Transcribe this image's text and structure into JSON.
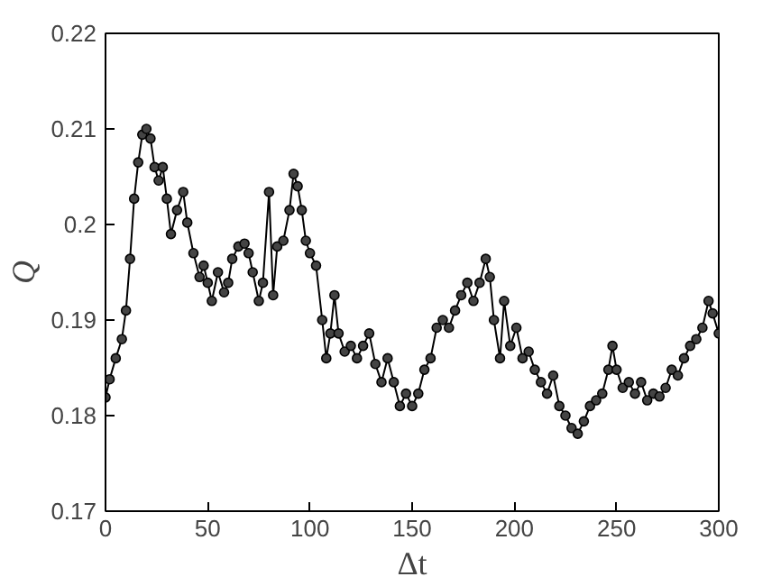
{
  "chart_data": {
    "type": "line",
    "xlabel": "Δt",
    "ylabel": "Q",
    "xlim": [
      0,
      300
    ],
    "ylim": [
      0.17,
      0.22
    ],
    "xticks": [
      0,
      50,
      100,
      150,
      200,
      250,
      300
    ],
    "yticks": [
      0.17,
      0.18,
      0.19,
      0.2,
      0.21,
      0.22
    ],
    "marker": "circle",
    "line_style": "solid",
    "series": [
      {
        "color": "#444444",
        "x": [
          0,
          2,
          5,
          8,
          10,
          12,
          14,
          16,
          18,
          20,
          22,
          24,
          26,
          28,
          30,
          32,
          35,
          38,
          40,
          43,
          46,
          48,
          50,
          52,
          55,
          58,
          60,
          62,
          65,
          68,
          70,
          72,
          75,
          77,
          80,
          82,
          84,
          87,
          90,
          92,
          94,
          96,
          98,
          100,
          103,
          106,
          108,
          110,
          112,
          114,
          117,
          120,
          123,
          126,
          129,
          132,
          135,
          138,
          141,
          144,
          147,
          150,
          153,
          156,
          159,
          162,
          165,
          168,
          171,
          174,
          177,
          180,
          183,
          186,
          188,
          190,
          193,
          195,
          198,
          201,
          204,
          207,
          210,
          213,
          216,
          219,
          222,
          225,
          228,
          231,
          234,
          237,
          240,
          243,
          246,
          248,
          250,
          253,
          256,
          259,
          262,
          265,
          268,
          271,
          274,
          277,
          280,
          283,
          286,
          289,
          292,
          295,
          297,
          300
        ],
        "values": [
          0.1819,
          0.1838,
          0.186,
          0.188,
          0.191,
          0.1964,
          0.2027,
          0.2065,
          0.2094,
          0.21,
          0.209,
          0.206,
          0.2046,
          0.206,
          0.2027,
          0.199,
          0.2015,
          0.2034,
          0.2002,
          0.197,
          0.1945,
          0.1957,
          0.1939,
          0.192,
          0.195,
          0.1929,
          0.1939,
          0.1964,
          0.1977,
          0.198,
          0.197,
          0.195,
          0.192,
          0.1939,
          0.2034,
          0.1926,
          0.1977,
          0.1983,
          0.2015,
          0.2053,
          0.204,
          0.2015,
          0.1983,
          0.197,
          0.1957,
          0.19,
          0.186,
          0.1886,
          0.1926,
          0.1886,
          0.1867,
          0.1873,
          0.186,
          0.1873,
          0.1886,
          0.1854,
          0.1835,
          0.186,
          0.1835,
          0.181,
          0.1823,
          0.181,
          0.1823,
          0.1848,
          0.186,
          0.1892,
          0.19,
          0.1892,
          0.191,
          0.1926,
          0.1939,
          0.192,
          0.1939,
          0.1964,
          0.1945,
          0.19,
          0.186,
          0.192,
          0.1873,
          0.1892,
          0.186,
          0.1867,
          0.1848,
          0.1835,
          0.1823,
          0.1842,
          0.181,
          0.18,
          0.1787,
          0.1781,
          0.1794,
          0.181,
          0.1816,
          0.1823,
          0.1848,
          0.1873,
          0.1848,
          0.1829,
          0.1835,
          0.1823,
          0.1835,
          0.1816,
          0.1823,
          0.182,
          0.1829,
          0.1848,
          0.1842,
          0.186,
          0.1873,
          0.188,
          0.1892,
          0.192,
          0.1907,
          0.1886
        ]
      }
    ]
  }
}
